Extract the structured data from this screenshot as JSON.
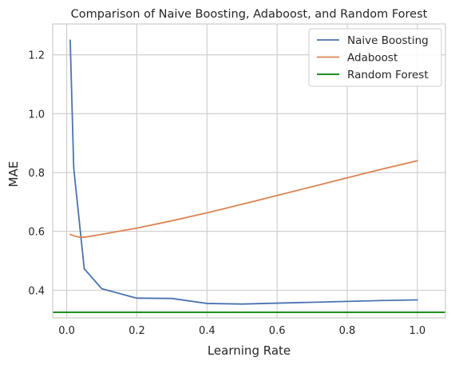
{
  "chart_data": {
    "type": "line",
    "title": "Comparison of Naive Boosting, Adaboost, and Random Forest",
    "xlabel": "Learning Rate",
    "ylabel": "MAE",
    "xlim": [
      -0.04,
      1.08
    ],
    "ylim": [
      0.306,
      1.305
    ],
    "xticks": [
      0.0,
      0.2,
      0.4,
      0.6,
      0.8,
      1.0
    ],
    "xtick_labels": [
      "0.0",
      "0.2",
      "0.4",
      "0.6",
      "0.8",
      "1.0"
    ],
    "yticks": [
      0.4,
      0.6,
      0.8,
      1.0,
      1.2
    ],
    "ytick_labels": [
      "0.4",
      "0.6",
      "0.8",
      "1.0",
      "1.2"
    ],
    "grid": true,
    "legend_position": "top-right",
    "series": [
      {
        "name": "Naive Boosting",
        "color": "#4c72b0",
        "x": [
          0.01,
          0.02,
          0.05,
          0.1,
          0.2,
          0.3,
          0.4,
          0.5,
          0.6,
          0.7,
          0.8,
          0.9,
          1.0
        ],
        "y": [
          1.25,
          0.815,
          0.473,
          0.405,
          0.373,
          0.372,
          0.355,
          0.353,
          0.356,
          0.359,
          0.362,
          0.365,
          0.367
        ]
      },
      {
        "name": "Adaboost",
        "color": "#dd8452",
        "x": [
          0.01,
          0.02,
          0.03,
          0.04,
          0.05,
          0.1,
          0.2,
          0.3,
          0.4,
          0.5,
          0.6,
          0.7,
          0.8,
          0.9,
          1.0
        ],
        "y": [
          0.59,
          0.585,
          0.582,
          0.58,
          0.58,
          0.59,
          0.611,
          0.636,
          0.663,
          0.692,
          0.722,
          0.752,
          0.782,
          0.812,
          0.84
        ]
      },
      {
        "name": "Random Forest",
        "color": "#008000",
        "type": "hline",
        "y": [
          0.325
        ]
      }
    ]
  }
}
